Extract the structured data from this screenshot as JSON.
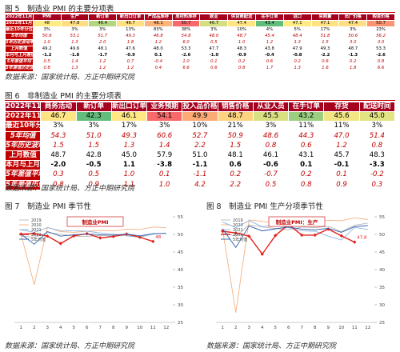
{
  "tables": [
    {
      "caption": "图 5　制造业 PMI 的主要分项表",
      "headers": [
        "2022年11月",
        "PMI",
        "生产",
        "新订单",
        "新出口订单",
        "产成品库存",
        "原材料库存",
        "就业",
        "供货商配送",
        "在手订单",
        "进口",
        "采购量",
        "出厂价格",
        "购进价格"
      ],
      "row_colors": [
        "#ffeb84",
        "#ffdd82",
        "#b5d680",
        "#ffe083",
        "#fcb479",
        "#f8696b",
        "#d3df82",
        "#ffe583",
        "#63be7b",
        "#ffeb84",
        "#ffe383",
        "#ffdf82",
        "#fa9473"
      ],
      "rows": [
        {
          "label": "2022年11月",
          "values": [
            "48",
            "47.8",
            "46.4",
            "46.7",
            "48.1",
            "50.7",
            "46.7",
            "47.4",
            "43.4",
            "47.1",
            "47.1",
            "47.4",
            "50.7"
          ]
        },
        {
          "label": "最近10年分位数水平",
          "values": [
            "3%",
            "3%",
            "3%",
            "13%",
            "83%",
            "38%",
            "3%",
            "10%",
            "4%",
            "5%",
            "17%",
            "3%",
            "23%"
          ]
        },
        {
          "label": "5年均值",
          "values": [
            "50.6",
            "53.1",
            "51.7",
            "49.3",
            "46.8",
            "54.8",
            "48.0",
            "48.7",
            "45.4",
            "48.4",
            "51.8",
            "50.6",
            "56.2"
          ]
        },
        {
          "label": "5年历史波动率",
          "values": [
            "1.0",
            "1.3",
            "2.0",
            "1.8",
            "1.2",
            "6.0",
            "0.5",
            "1.0",
            "1.2",
            "1.3",
            "1.5",
            "3.0",
            "3.0"
          ]
        },
        {
          "label": "上月数值",
          "values": [
            "49.2",
            "49.6",
            "48.1",
            "47.6",
            "48.0",
            "53.3",
            "47.7",
            "48.3",
            "43.8",
            "47.9",
            "49.3",
            "48.7",
            "53.3"
          ]
        },
        {
          "label": "本月与上月差值",
          "values": [
            "-1.2",
            "-1.8",
            "-1.7",
            "-0.9",
            "0.1",
            "-2.6",
            "-1.0",
            "-0.9",
            "-0.4",
            "-0.8",
            "-2.2",
            "-1.3",
            "-2.6"
          ]
        },
        {
          "label": "5年差值平均",
          "values": [
            "0.5",
            "1.4",
            "1.2",
            "0.7",
            "-0.4",
            "1.0",
            "0.1",
            "0.2",
            "0.6",
            "0.2",
            "0.6",
            "0.2",
            "0.8"
          ]
        },
        {
          "label": "5年差值历史波动率",
          "values": [
            "0.8",
            "1.3",
            "1.2",
            "1.2",
            "0.4",
            "6.6",
            "0.6",
            "0.8",
            "1.7",
            "1.3",
            "1.6",
            "1.8",
            "6.6"
          ]
        }
      ],
      "source": "数据来源：国家统计局、方正中期研究院"
    },
    {
      "caption": "图 6　非制造业 PMI 的主要分项表",
      "headers": [
        "2022年11月",
        "商务活动",
        "新订单",
        "新出口订单",
        "业务预期",
        "投入品价格",
        "销售价格",
        "从业人员",
        "在手订单",
        "存货",
        "配送时间"
      ],
      "row_colors": [
        "#ffe483",
        "#63be7b",
        "#ffe884",
        "#f8696b",
        "#fcab77",
        "#fed380",
        "#d9e082",
        "#9bcf7f",
        "#f1e683",
        "#e2e383"
      ],
      "rows": [
        {
          "label": "2022年11月",
          "values": [
            "46.7",
            "42.3",
            "46.1",
            "54.1",
            "49.9",
            "48.7",
            "45.5",
            "43.2",
            "45.6",
            "45.0"
          ]
        },
        {
          "label": "最近10年分位数水平",
          "values": [
            "3%",
            "3%",
            "17%",
            "3%",
            "10%",
            "21%",
            "3%",
            "11%",
            "11%",
            "3%"
          ]
        },
        {
          "label": "5年均值",
          "values": [
            "54.3",
            "51.0",
            "49.3",
            "60.6",
            "52.7",
            "50.9",
            "48.6",
            "44.3",
            "47.0",
            "51.4"
          ]
        },
        {
          "label": "5年历史波动率",
          "values": [
            "1.5",
            "1.5",
            "1.3",
            "1.4",
            "2.2",
            "1.5",
            "0.8",
            "0.6",
            "1.2",
            "0.8"
          ]
        },
        {
          "label": "上月数值",
          "values": [
            "48.7",
            "42.8",
            "45.0",
            "57.9",
            "51.0",
            "48.1",
            "46.1",
            "43.1",
            "45.7",
            "48.3"
          ]
        },
        {
          "label": "本月与上月差值",
          "values": [
            "-2.0",
            "-0.5",
            "1.1",
            "-3.8",
            "-1.1",
            "0.6",
            "-0.6",
            "0.1",
            "-0.1",
            "-3.3"
          ]
        },
        {
          "label": "5年差值平均",
          "values": [
            "0.3",
            "0.5",
            "1.0",
            "0.1",
            "-1.1",
            "0.2",
            "-0.7",
            "0.2",
            "0.1",
            "-0.2"
          ]
        },
        {
          "label": "5年差值历史波动率",
          "values": [
            "0.8",
            "0.9",
            "1.1",
            "1.0",
            "4.2",
            "2.2",
            "0.5",
            "0.8",
            "0.9",
            "0.3"
          ]
        }
      ],
      "source": "数据来源：国家统计局、方正中期研究院"
    }
  ],
  "chart_data": [
    {
      "type": "line",
      "caption": "图 7　制造业 PMI 季节性",
      "title": "制造业PMI",
      "annotation": "48",
      "categories": [
        "1",
        "2",
        "3",
        "4",
        "5",
        "6",
        "7",
        "8",
        "9",
        "10",
        "11",
        "12"
      ],
      "ylim": [
        25,
        55
      ],
      "yticks": [
        25,
        30,
        35,
        40,
        45,
        50,
        55
      ],
      "series": [
        {
          "name": "2019",
          "color": "#b8b8b8",
          "values": [
            49.5,
            49.2,
            50.5,
            50.1,
            49.4,
            49.4,
            49.7,
            49.5,
            49.8,
            49.3,
            50.2,
            50.2
          ]
        },
        {
          "name": "2020",
          "color": "#f4b183",
          "values": [
            50.0,
            35.7,
            52.0,
            50.8,
            50.6,
            50.9,
            51.1,
            51.0,
            51.5,
            51.4,
            52.1,
            51.9
          ]
        },
        {
          "name": "2021",
          "color": "#8fb4de",
          "values": [
            51.3,
            50.6,
            51.9,
            51.1,
            51.0,
            50.9,
            50.4,
            50.1,
            49.6,
            49.2,
            50.1,
            50.3
          ]
        },
        {
          "name": "2022",
          "color": "#e3201b",
          "values": [
            50.1,
            50.2,
            49.5,
            47.4,
            49.6,
            50.2,
            49.0,
            49.4,
            50.1,
            49.2,
            48.0,
            null
          ]
        },
        {
          "name": "5年均值",
          "color": "#2f5dab",
          "values": [
            50.1,
            47.2,
            50.8,
            49.5,
            49.9,
            50.1,
            49.9,
            49.8,
            50.1,
            49.6,
            50.2,
            50.3
          ]
        }
      ],
      "source": "数据来源：国家统计局、方正中期研究院"
    },
    {
      "type": "line",
      "caption": "图 8　制造业 PMI 生产分项季节性",
      "title": "制造业PMI：生产",
      "annotation": "47.8",
      "categories": [
        "1",
        "2",
        "3",
        "4",
        "5",
        "6",
        "7",
        "8",
        "9",
        "10",
        "11",
        "12"
      ],
      "ylim": [
        25,
        55
      ],
      "yticks": [
        25,
        30,
        35,
        40,
        45,
        50,
        55
      ],
      "series": [
        {
          "name": "2019",
          "color": "#b8b8b8",
          "values": [
            50.6,
            49.5,
            52.7,
            52.1,
            51.7,
            51.3,
            52.1,
            51.9,
            52.3,
            50.8,
            52.6,
            53.2
          ]
        },
        {
          "name": "2020",
          "color": "#f4b183",
          "values": [
            51.3,
            27.8,
            54.1,
            53.7,
            53.2,
            53.9,
            54.0,
            53.5,
            54.0,
            53.9,
            54.7,
            54.2
          ]
        },
        {
          "name": "2021",
          "color": "#8fb4de",
          "values": [
            53.5,
            51.9,
            53.9,
            52.2,
            52.7,
            51.9,
            51.0,
            50.9,
            49.5,
            48.4,
            52.0,
            51.4
          ]
        },
        {
          "name": "2022",
          "color": "#e3201b",
          "values": [
            50.9,
            50.4,
            49.5,
            44.4,
            49.7,
            52.8,
            49.8,
            49.8,
            51.5,
            49.6,
            47.8,
            null
          ]
        },
        {
          "name": "5年均值",
          "color": "#2f5dab",
          "values": [
            51.6,
            46.3,
            52.4,
            51.0,
            51.6,
            52.1,
            51.5,
            51.3,
            51.7,
            50.6,
            52.2,
            52.5
          ]
        }
      ],
      "source": "数据来源：国家统计局、方正中期研究院"
    }
  ]
}
